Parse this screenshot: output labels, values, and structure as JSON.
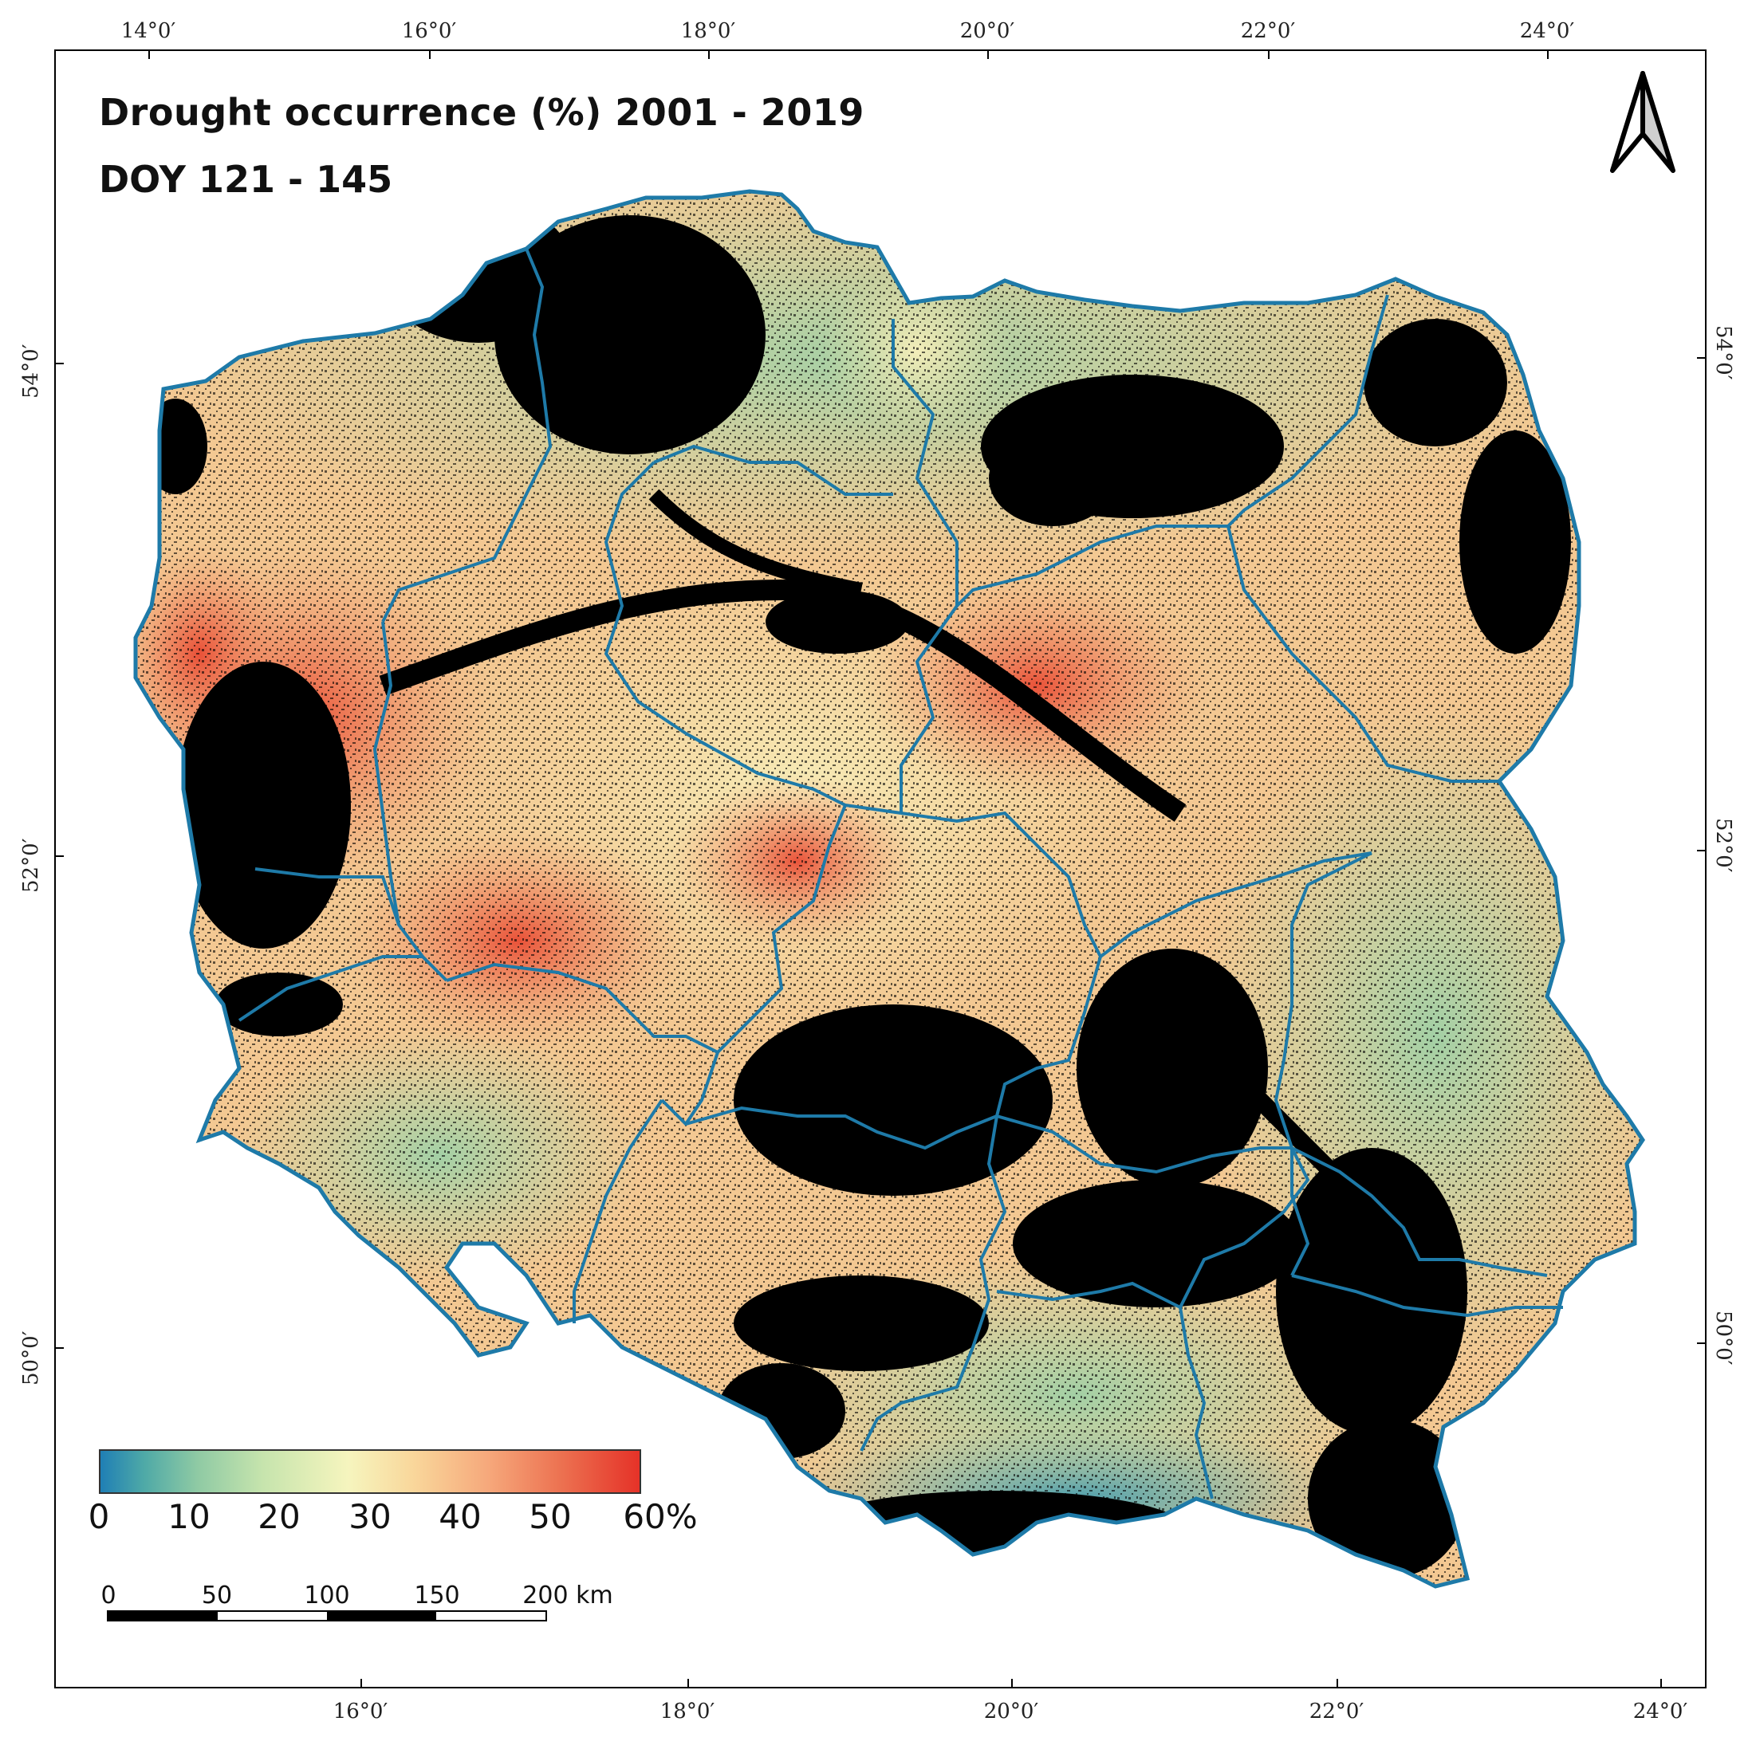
{
  "title": "Drought occurrence (%) 2001 - 2019",
  "subtitle": "DOY 121 - 145",
  "graticule": {
    "top": [
      "14°0′",
      "16°0′",
      "18°0′",
      "20°0′",
      "22°0′",
      "24°0′"
    ],
    "bottom": [
      "16°0′",
      "18°0′",
      "20°0′",
      "22°0′",
      "24°0′"
    ],
    "left": [
      "54°0′",
      "52°0′",
      "50°0′"
    ],
    "right": [
      "54°0′",
      "52°0′",
      "50°0′"
    ]
  },
  "legend": {
    "labels": [
      "0",
      "10",
      "20",
      "30",
      "40",
      "50",
      "60%"
    ],
    "range": [
      0,
      60
    ],
    "unit": "%",
    "colors": [
      "#1f7fb5",
      "#8fcaa4",
      "#f6f5be",
      "#f6a87b",
      "#e53228"
    ]
  },
  "scalebar": {
    "labels": [
      "0",
      "50",
      "100",
      "150",
      "200 km"
    ]
  },
  "colors": {
    "border": "#1e7aa8",
    "nodata": "#000000"
  },
  "icons": {
    "north_arrow": "north-arrow-icon"
  }
}
